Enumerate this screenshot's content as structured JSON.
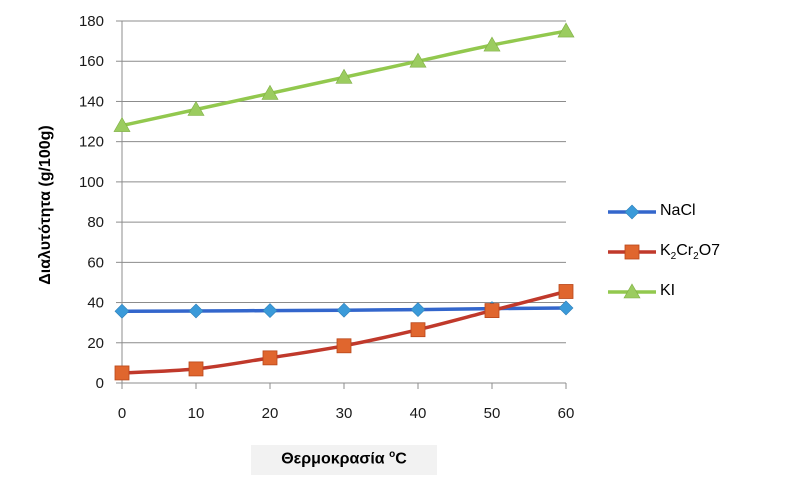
{
  "chart_data": {
    "type": "line",
    "x": [
      0,
      10,
      20,
      30,
      40,
      50,
      60
    ],
    "xticks": [
      "0",
      "10",
      "20",
      "30",
      "40",
      "50",
      "60"
    ],
    "yticks": [
      "0",
      "20",
      "40",
      "60",
      "80",
      "100",
      "120",
      "140",
      "160",
      "180"
    ],
    "ylim": [
      0,
      180
    ],
    "xlim": [
      0,
      60
    ],
    "ylabel": "Διαλυτότητα (g/100g)",
    "xlabel": "Θερμοκρασία",
    "xlabel_sup": "o",
    "xlabel_unit": "C",
    "grid": "horizontal",
    "legend_position": "right",
    "series": [
      {
        "name": "NaCl",
        "color": "#3366cc",
        "marker": "diamond",
        "marker_color": "#3a9ad9",
        "values": [
          35.7,
          35.8,
          36.0,
          36.2,
          36.5,
          37.0,
          37.3
        ]
      },
      {
        "name": "K2Cr2O7",
        "legend_parts": [
          "K",
          "2",
          "Cr",
          "2",
          "O7"
        ],
        "color": "#c0392b",
        "marker": "square",
        "marker_color": "#e0662e",
        "values": [
          5,
          7,
          12.5,
          18.5,
          26.5,
          36,
          45.5
        ]
      },
      {
        "name": "KI",
        "color": "#92c84e",
        "marker": "triangle",
        "marker_color": "#9bcc5f",
        "values": [
          128,
          136,
          144,
          152,
          160,
          168,
          175
        ]
      }
    ]
  }
}
